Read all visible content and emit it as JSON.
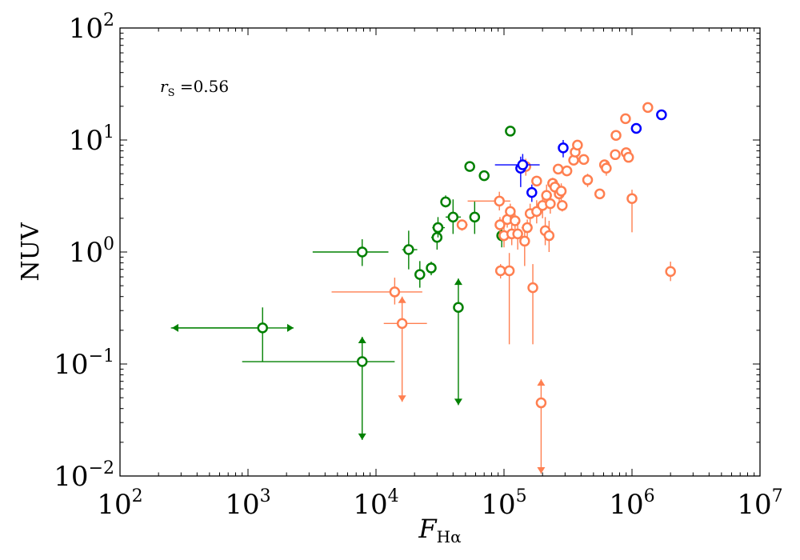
{
  "chart_data": {
    "type": "scatter",
    "title": "",
    "xlabel": "F",
    "xlabel_sub": "Hα",
    "ylabel": "NUV",
    "x_scale": "log",
    "y_scale": "log",
    "xlim": [
      100,
      10000000
    ],
    "ylim": [
      0.01,
      100
    ],
    "x_tick_labels": [
      {
        "value": 100,
        "base": "10",
        "exp": "2"
      },
      {
        "value": 1000,
        "base": "10",
        "exp": "3"
      },
      {
        "value": 10000,
        "base": "10",
        "exp": "4"
      },
      {
        "value": 100000,
        "base": "10",
        "exp": "5"
      },
      {
        "value": 1000000,
        "base": "10",
        "exp": "6"
      },
      {
        "value": 10000000,
        "base": "10",
        "exp": "7"
      }
    ],
    "y_tick_labels": [
      {
        "value": 0.01,
        "base": "10",
        "exp": "−2"
      },
      {
        "value": 0.1,
        "base": "10",
        "exp": "−1"
      },
      {
        "value": 1,
        "base": "10",
        "exp": "0"
      },
      {
        "value": 10,
        "base": "10",
        "exp": "1"
      },
      {
        "value": 100,
        "base": "10",
        "exp": "2"
      }
    ],
    "annotation": {
      "prefix": "r",
      "sub": "S",
      "text": " =0.56"
    },
    "series": [
      {
        "name": "green",
        "color": "#008000",
        "points": [
          {
            "x": 1300,
            "y": 0.21,
            "xerr": [
              1050,
              0
            ],
            "yerr": [
              0.105,
              0.11
            ],
            "arrows": [
              "left",
              "right"
            ]
          },
          {
            "x": 7800,
            "y": 0.105,
            "xerr": [
              6900,
              6200
            ],
            "arrows": [
              "down",
              "up"
            ],
            "arrow_y": [
              0.021,
              0.175
            ]
          },
          {
            "x": 7800,
            "y": 1.0,
            "xerr": [
              4600,
              4700
            ],
            "yerr": [
              0.25,
              0.3
            ]
          },
          {
            "x": 18000,
            "y": 1.05,
            "xerr": [
              2000,
              3000
            ],
            "yerr": [
              0.35,
              0.5
            ]
          },
          {
            "x": 22000,
            "y": 0.63,
            "xerr": [
              1500,
              1500
            ],
            "yerr": [
              0.15,
              0.2
            ]
          },
          {
            "x": 27000,
            "y": 0.72,
            "xerr": [
              2000,
              2000
            ],
            "yerr": [
              0.1,
              0.1
            ]
          },
          {
            "x": 30000,
            "y": 1.35,
            "xerr": [
              3000,
              3000
            ],
            "yerr": [
              0.3,
              0.4
            ]
          },
          {
            "x": 30500,
            "y": 1.65,
            "xerr": [
              3000,
              4000
            ],
            "yerr": [
              0.3,
              0.4
            ]
          },
          {
            "x": 35000,
            "y": 2.8,
            "xerr": [
              2000,
              3000
            ],
            "yerr": [
              0.3,
              0.4
            ]
          },
          {
            "x": 40000,
            "y": 2.05,
            "xerr": [
              5000,
              6000
            ],
            "yerr": [
              0.6,
              0.9
            ]
          },
          {
            "x": 44000,
            "y": 0.32,
            "arrows": [
              "down",
              "up"
            ],
            "arrow_y": [
              0.043,
              0.58
            ]
          },
          {
            "x": 54000,
            "y": 5.8,
            "xerr": [
              4000,
              5000
            ],
            "yerr": [
              0.3,
              0.4
            ]
          },
          {
            "x": 59000,
            "y": 2.05,
            "xerr": [
              3000,
              3000
            ],
            "yerr": [
              0.6,
              0.8
            ]
          },
          {
            "x": 70000,
            "y": 4.8,
            "xerr": [
              5000,
              5000
            ],
            "yerr": [
              0.3,
              0.3
            ]
          },
          {
            "x": 96000,
            "y": 1.4,
            "xerr": [
              5000,
              5000
            ],
            "yerr": [
              0.3,
              0.4
            ]
          },
          {
            "x": 112000,
            "y": 12,
            "xerr": [
              4000,
              4000
            ],
            "yerr": [
              0.5,
              0.5
            ]
          }
        ]
      },
      {
        "name": "coral",
        "color": "#ff7f50",
        "points": [
          {
            "x": 14000,
            "y": 0.44,
            "xerr": [
              9500,
              9000
            ],
            "yerr": [
              0.1,
              0.15
            ]
          },
          {
            "x": 16000,
            "y": 0.23,
            "xerr": [
              4500,
              9000
            ],
            "arrows": [
              "down",
              "up"
            ],
            "arrow_y": [
              0.046,
              0.4
            ]
          },
          {
            "x": 47000,
            "y": 1.75,
            "xerr": [
              4000,
              5000
            ],
            "yerr": [
              0.2,
              0.2
            ]
          },
          {
            "x": 92000,
            "y": 2.85,
            "xerr": [
              40000,
              20000
            ],
            "yerr": [
              0.5,
              0.6
            ]
          },
          {
            "x": 93000,
            "y": 1.75,
            "xerr": [
              5000,
              5000
            ],
            "yerr": [
              0.3,
              0.3
            ]
          },
          {
            "x": 94000,
            "y": 0.68,
            "xerr": [
              5000,
              5000
            ],
            "yerr": [
              0.1,
              0.1
            ]
          },
          {
            "x": 100000,
            "y": 1.4,
            "xerr": [
              7000,
              7000
            ],
            "yerr": [
              0.3,
              0.4
            ]
          },
          {
            "x": 106000,
            "y": 1.95,
            "xerr": [
              7000,
              7000
            ],
            "yerr": [
              0.3,
              0.4
            ]
          },
          {
            "x": 110000,
            "y": 0.68,
            "xerr": [
              10000,
              10000
            ],
            "yerr": [
              0.53,
              0.3
            ]
          },
          {
            "x": 112000,
            "y": 2.3,
            "xerr": [
              8000,
              8000
            ],
            "yerr": [
              0.4,
              0.4
            ]
          },
          {
            "x": 115000,
            "y": 1.45,
            "xerr": [
              8000,
              8000
            ],
            "yerr": [
              0.3,
              0.3
            ]
          },
          {
            "x": 122000,
            "y": 1.9,
            "xerr": [
              10000,
              10000
            ],
            "yerr": [
              0.3,
              0.3
            ]
          },
          {
            "x": 128000,
            "y": 1.45,
            "xerr": [
              10000,
              10000
            ],
            "yerr": [
              0.4,
              0.4
            ]
          },
          {
            "x": 145000,
            "y": 1.25,
            "xerr": [
              12000,
              12000
            ],
            "yerr": [
              0.5,
              0.5
            ]
          },
          {
            "x": 148000,
            "y": 5.8,
            "xerr": [
              10000,
              10000
            ],
            "yerr": [
              1.0,
              1.0
            ]
          },
          {
            "x": 152000,
            "y": 1.65,
            "xerr": [
              15000,
              15000
            ],
            "yerr": [
              0.3,
              0.3
            ]
          },
          {
            "x": 160000,
            "y": 2.2,
            "xerr": [
              12000,
              12000
            ],
            "yerr": [
              0.5,
              0.5
            ]
          },
          {
            "x": 168000,
            "y": 0.48,
            "xerr": [
              10000,
              10000
            ],
            "yerr": [
              0.33,
              0.3
            ]
          },
          {
            "x": 180000,
            "y": 2.3,
            "xerr": [
              15000,
              15000
            ],
            "yerr": [
              0.5,
              0.6
            ]
          },
          {
            "x": 180000,
            "y": 4.3,
            "xerr": [
              10000,
              10000
            ],
            "yerr": [
              0.4,
              0.4
            ]
          },
          {
            "x": 195000,
            "y": 0.045,
            "arrows": [
              "down",
              "up"
            ],
            "arrow_y": [
              0.0105,
              0.073
            ]
          },
          {
            "x": 200000,
            "y": 2.6,
            "xerr": [
              15000,
              15000
            ],
            "yerr": [
              0.6,
              0.6
            ]
          },
          {
            "x": 210000,
            "y": 1.55,
            "xerr": [
              15000,
              15000
            ],
            "yerr": [
              0.4,
              0.5
            ]
          },
          {
            "x": 215000,
            "y": 3.2,
            "xerr": [
              15000,
              15000
            ],
            "yerr": [
              0.7,
              0.8
            ]
          },
          {
            "x": 225000,
            "y": 1.4,
            "xerr": [
              15000,
              15000
            ],
            "yerr": [
              0.4,
              0.5
            ]
          },
          {
            "x": 230000,
            "y": 2.7,
            "xerr": [
              15000,
              15000
            ],
            "yerr": [
              0.5,
              0.5
            ]
          },
          {
            "x": 240000,
            "y": 4.1,
            "xerr": [
              15000,
              15000
            ],
            "yerr": [
              0.5,
              0.5
            ]
          },
          {
            "x": 250000,
            "y": 3.8,
            "xerr": [
              15000,
              15000
            ],
            "yerr": [
              0.5,
              0.5
            ]
          },
          {
            "x": 265000,
            "y": 5.5,
            "xerr": [
              15000,
              15000
            ],
            "yerr": [
              0.5,
              0.5
            ]
          },
          {
            "x": 270000,
            "y": 3.3,
            "xerr": [
              15000,
              15000
            ],
            "yerr": [
              0.5,
              0.5
            ]
          },
          {
            "x": 280000,
            "y": 3.5,
            "xerr": [
              15000,
              15000
            ],
            "yerr": [
              0.6,
              0.6
            ]
          },
          {
            "x": 285000,
            "y": 2.6,
            "xerr": [
              15000,
              15000
            ],
            "yerr": [
              0.3,
              0.3
            ]
          },
          {
            "x": 310000,
            "y": 5.3,
            "xerr": [
              15000,
              15000
            ],
            "yerr": [
              0.4,
              0.4
            ]
          },
          {
            "x": 350000,
            "y": 6.6,
            "xerr": [
              20000,
              20000
            ],
            "yerr": [
              0.5,
              0.5
            ]
          },
          {
            "x": 360000,
            "y": 7.8,
            "xerr": [
              20000,
              20000
            ],
            "yerr": [
              0.5,
              0.5
            ]
          },
          {
            "x": 375000,
            "y": 9.0,
            "xerr": [
              20000,
              20000
            ],
            "yerr": [
              0.5,
              0.5
            ]
          },
          {
            "x": 420000,
            "y": 6.7,
            "xerr": [
              20000,
              20000
            ],
            "yerr": [
              0.5,
              0.5
            ]
          },
          {
            "x": 450000,
            "y": 4.4,
            "xerr": [
              20000,
              20000
            ],
            "yerr": [
              0.6,
              0.6
            ]
          },
          {
            "x": 560000,
            "y": 3.3,
            "xerr": [
              30000,
              30000
            ],
            "yerr": [
              0.3,
              0.3
            ]
          },
          {
            "x": 610000,
            "y": 6.0,
            "xerr": [
              30000,
              30000
            ],
            "yerr": [
              0.5,
              0.5
            ]
          },
          {
            "x": 630000,
            "y": 5.6,
            "xerr": [
              30000,
              30000
            ],
            "yerr": [
              0.8,
              0.8
            ]
          },
          {
            "x": 740000,
            "y": 7.4,
            "xerr": [
              40000,
              40000
            ],
            "yerr": [
              0.5,
              0.5
            ]
          },
          {
            "x": 750000,
            "y": 11,
            "xerr": [
              40000,
              40000
            ],
            "yerr": [
              0.8,
              0.8
            ]
          },
          {
            "x": 890000,
            "y": 15.5,
            "xerr": [
              40000,
              40000
            ],
            "yerr": [
              0.8,
              0.8
            ]
          },
          {
            "x": 900000,
            "y": 7.7,
            "xerr": [
              40000,
              40000
            ],
            "yerr": [
              0.5,
              0.5
            ]
          },
          {
            "x": 940000,
            "y": 7.0,
            "xerr": [
              40000,
              40000
            ],
            "yerr": [
              0.5,
              0.5
            ]
          },
          {
            "x": 1000000,
            "y": 3.0,
            "xerr": [
              50000,
              50000
            ],
            "yerr": [
              1.5,
              0.6
            ]
          },
          {
            "x": 1330000,
            "y": 19.5,
            "xerr": [
              50000,
              50000
            ],
            "yerr": [
              0.8,
              0.8
            ]
          },
          {
            "x": 2000000,
            "y": 0.67,
            "xerr": [
              50000,
              50000
            ],
            "yerr": [
              0.12,
              0.15
            ]
          }
        ]
      },
      {
        "name": "blue",
        "color": "#0000ff",
        "points": [
          {
            "x": 135000,
            "y": 5.6,
            "xerr": [
              10000,
              10000
            ],
            "yerr": [
              1.8,
              1.5
            ]
          },
          {
            "x": 140000,
            "y": 6.0,
            "xerr": [
              55000,
              50000
            ],
            "yerr": [
              0.5,
              1.5
            ]
          },
          {
            "x": 165000,
            "y": 3.4,
            "xerr": [
              10000,
              10000
            ],
            "yerr": [
              0.6,
              0.6
            ]
          },
          {
            "x": 290000,
            "y": 8.5,
            "xerr": [
              15000,
              15000
            ],
            "yerr": [
              1.5,
              1.5
            ]
          },
          {
            "x": 1080000,
            "y": 12.7,
            "xerr": [
              40000,
              40000
            ],
            "yerr": [
              0.8,
              0.8
            ]
          },
          {
            "x": 1700000,
            "y": 16.8,
            "xerr": [
              50000,
              50000
            ],
            "yerr": [
              0.8,
              0.8
            ]
          }
        ]
      }
    ]
  }
}
